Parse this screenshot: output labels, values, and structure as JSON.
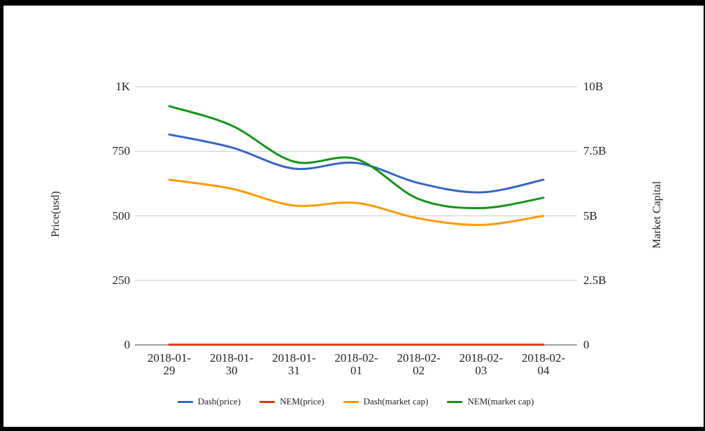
{
  "chart_data": {
    "type": "line",
    "title": "",
    "x_categories": [
      "2018-01-29",
      "2018-01-30",
      "2018-01-31",
      "2018-02-01",
      "2018-02-02",
      "2018-02-03",
      "2018-02-04"
    ],
    "axes": {
      "left": {
        "title": "Price(usd)",
        "ticks": [
          "0",
          "250",
          "500",
          "750",
          "1K"
        ],
        "min": 0,
        "max": 1000
      },
      "right": {
        "title": "Market Capital",
        "ticks": [
          "0",
          "2.5B",
          "5B",
          "7.5B",
          "10B"
        ],
        "min": 0,
        "max": 10,
        "unit": "B"
      }
    },
    "series": [
      {
        "name": "Dash(price)",
        "axis": "left",
        "color": "#3366CC",
        "values": [
          815,
          765,
          683,
          705,
          627,
          591,
          640
        ]
      },
      {
        "name": "NEM(price)",
        "axis": "left",
        "color": "#DC3912",
        "values": [
          1,
          1,
          1,
          1,
          1,
          1,
          1
        ]
      },
      {
        "name": "Dash(market cap)",
        "axis": "right",
        "color": "#FF9900",
        "values": [
          6.4,
          6.05,
          5.4,
          5.5,
          4.9,
          4.65,
          5.0
        ]
      },
      {
        "name": "NEM(market cap)",
        "axis": "right",
        "color": "#109618",
        "values": [
          9.25,
          8.5,
          7.1,
          7.2,
          5.65,
          5.3,
          5.7
        ]
      }
    ],
    "legend_position": "bottom",
    "grid": true,
    "colors": {
      "background": "#ffffff",
      "gridline": "#cccccc",
      "axis_line": "#424242",
      "text": "#222222",
      "frame": "#000000"
    }
  }
}
